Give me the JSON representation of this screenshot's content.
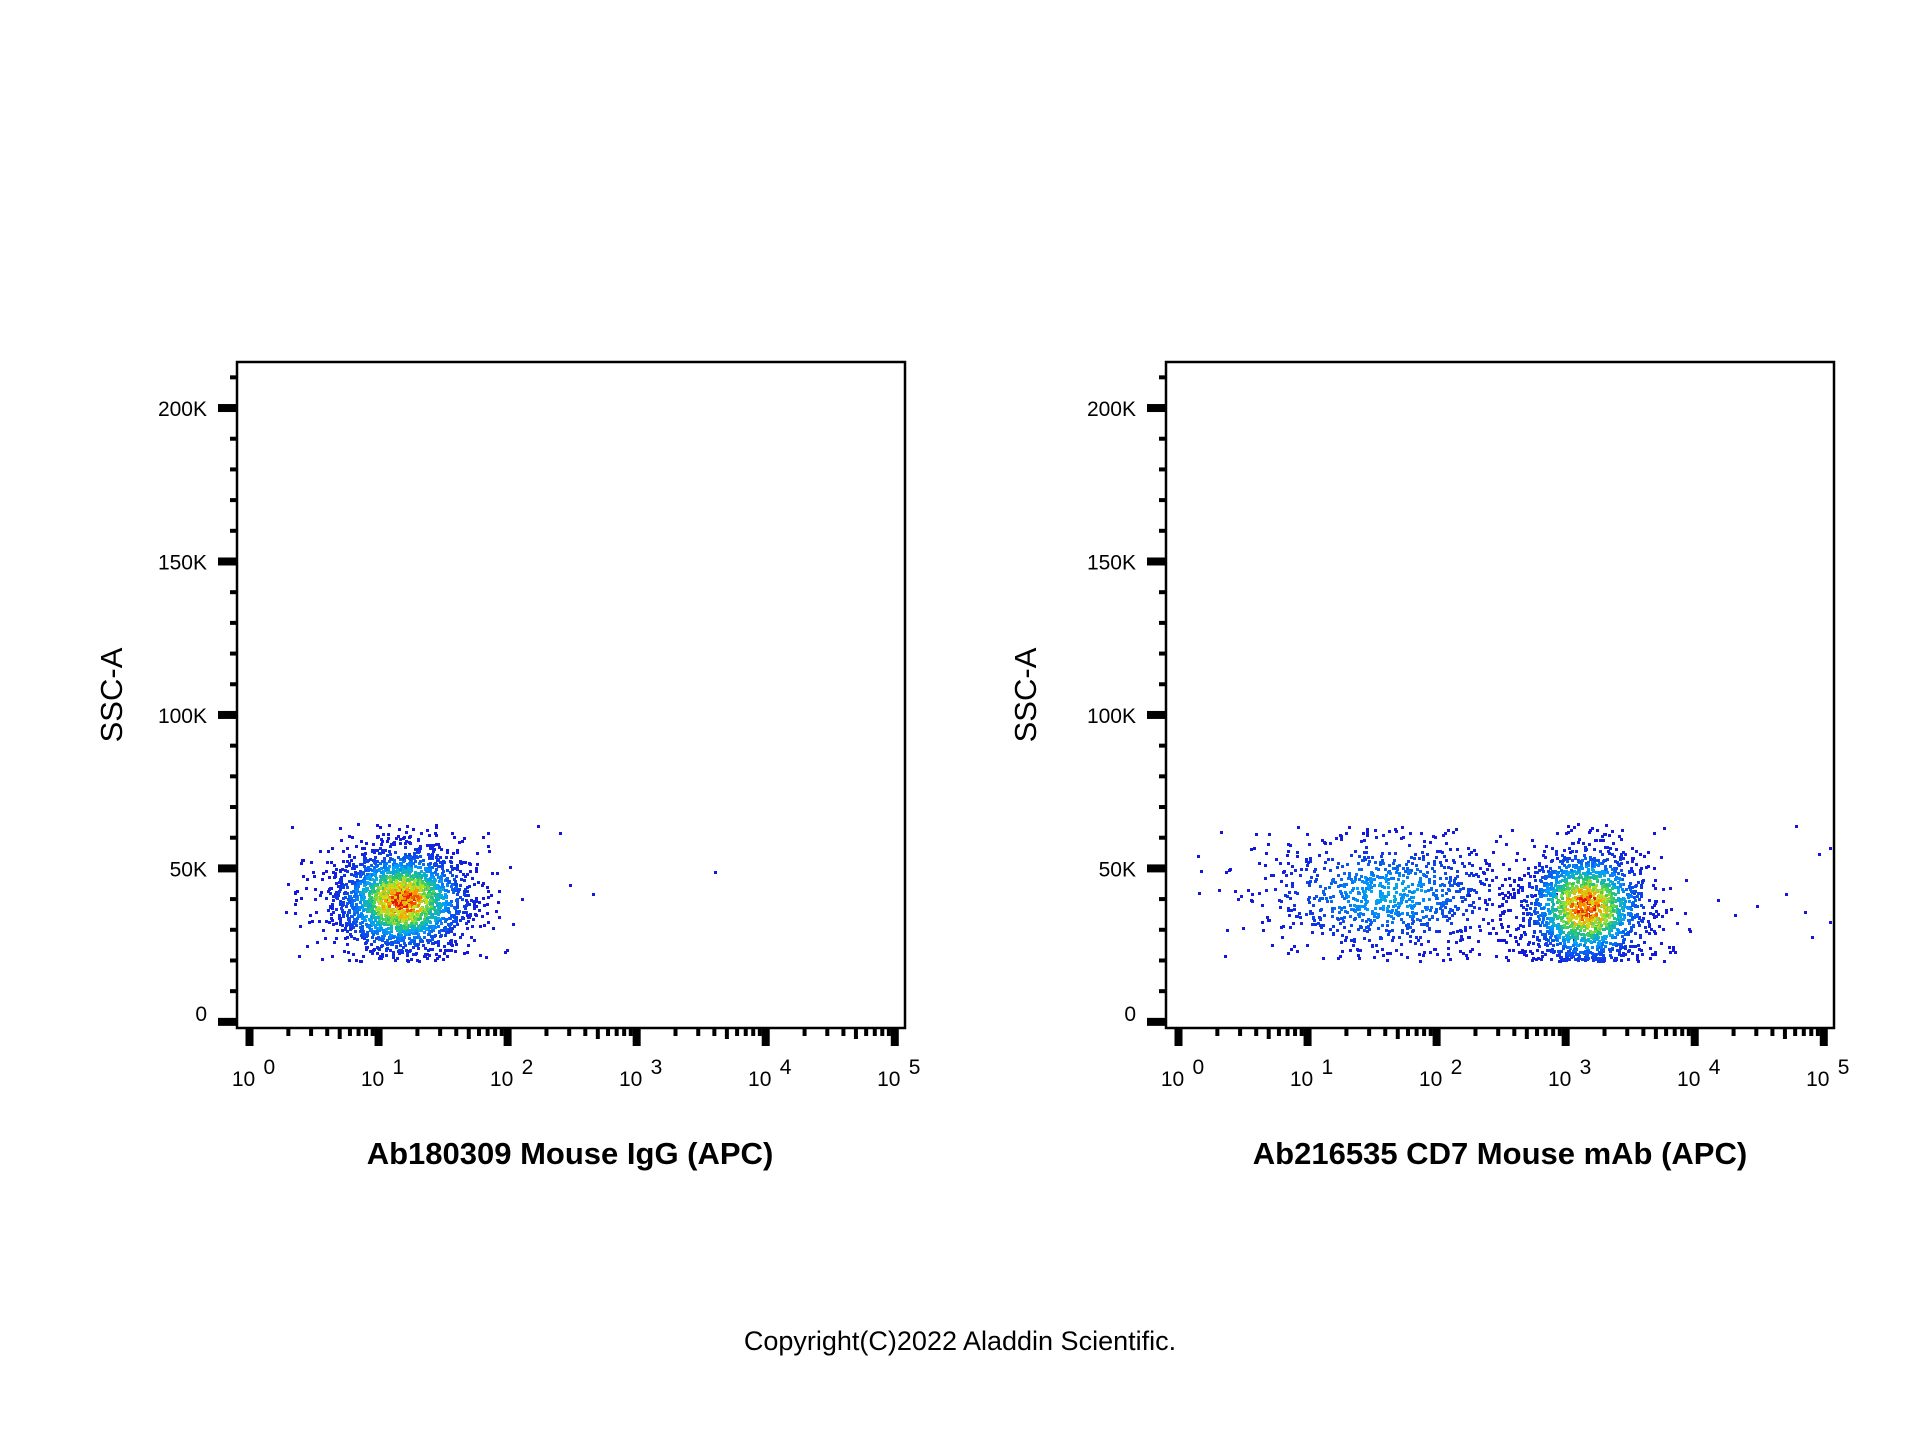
{
  "chart_data": [
    {
      "type": "scatter",
      "xlabel": "Ab180309 Mouse IgG (APC)",
      "ylabel": "SSC-A",
      "xscale": "log",
      "xlim": [
        0.8,
        120000
      ],
      "ylim": [
        -2000,
        215000
      ],
      "yticks": [
        {
          "value": 0,
          "label": "0"
        },
        {
          "value": 50000,
          "label": "50K"
        },
        {
          "value": 100000,
          "label": "100K"
        },
        {
          "value": 150000,
          "label": "150K"
        },
        {
          "value": 200000,
          "label": "200K"
        }
      ],
      "xticks": [
        {
          "value": 1,
          "base": "10",
          "exp": "0"
        },
        {
          "value": 10,
          "base": "10",
          "exp": "1"
        },
        {
          "value": 100,
          "base": "10",
          "exp": "2"
        },
        {
          "value": 1000,
          "base": "10",
          "exp": "3"
        },
        {
          "value": 10000,
          "base": "10",
          "exp": "4"
        },
        {
          "value": 100000,
          "base": "10",
          "exp": "5"
        }
      ],
      "populations": [
        {
          "center_x": 15,
          "center_y": 40000,
          "count": 2300,
          "spread_log": 0.27,
          "spread_y": 9000,
          "density_peak": 1.0
        }
      ],
      "outliers": [
        {
          "x": 2.5,
          "y": 53000
        },
        {
          "x": 250,
          "y": 62000
        },
        {
          "x": 300,
          "y": 45000
        },
        {
          "x": 450,
          "y": 42000
        },
        {
          "x": 4000,
          "y": 49000
        },
        {
          "x": 170,
          "y": 64000
        }
      ],
      "ymin_gate": 20000,
      "ymax_gate": 65000
    },
    {
      "type": "scatter",
      "xlabel": "Ab216535 CD7 Mouse mAb (APC)",
      "ylabel": "SSC-A",
      "xscale": "log",
      "xlim": [
        0.8,
        120000
      ],
      "ylim": [
        -2000,
        215000
      ],
      "yticks": [
        {
          "value": 0,
          "label": "0"
        },
        {
          "value": 50000,
          "label": "50K"
        },
        {
          "value": 100000,
          "label": "100K"
        },
        {
          "value": 150000,
          "label": "150K"
        },
        {
          "value": 200000,
          "label": "200K"
        }
      ],
      "xticks": [
        {
          "value": 1,
          "base": "10",
          "exp": "0"
        },
        {
          "value": 10,
          "base": "10",
          "exp": "1"
        },
        {
          "value": 100,
          "base": "10",
          "exp": "2"
        },
        {
          "value": 1000,
          "base": "10",
          "exp": "3"
        },
        {
          "value": 10000,
          "base": "10",
          "exp": "4"
        },
        {
          "value": 100000,
          "base": "10",
          "exp": "5"
        }
      ],
      "populations": [
        {
          "center_x": 40,
          "center_y": 42000,
          "count": 900,
          "spread_log": 0.5,
          "spread_y": 10000,
          "density_peak": 0.35
        },
        {
          "center_x": 1400,
          "center_y": 38000,
          "count": 1700,
          "spread_log": 0.25,
          "spread_y": 10000,
          "density_peak": 1.0
        }
      ],
      "outliers": [
        {
          "x": 60000,
          "y": 64000
        },
        {
          "x": 90000,
          "y": 55000
        },
        {
          "x": 110000,
          "y": 57000
        },
        {
          "x": 30000,
          "y": 38000
        },
        {
          "x": 20000,
          "y": 35000
        },
        {
          "x": 50000,
          "y": 42000
        },
        {
          "x": 70000,
          "y": 36000
        },
        {
          "x": 110000,
          "y": 33000
        },
        {
          "x": 9000,
          "y": 30000
        },
        {
          "x": 80000,
          "y": 28000
        },
        {
          "x": 15000,
          "y": 40000
        }
      ],
      "ymin_gate": 20000,
      "ymax_gate": 65000
    }
  ],
  "copyright": "Copyright(C)2022 Aladdin Scientific."
}
